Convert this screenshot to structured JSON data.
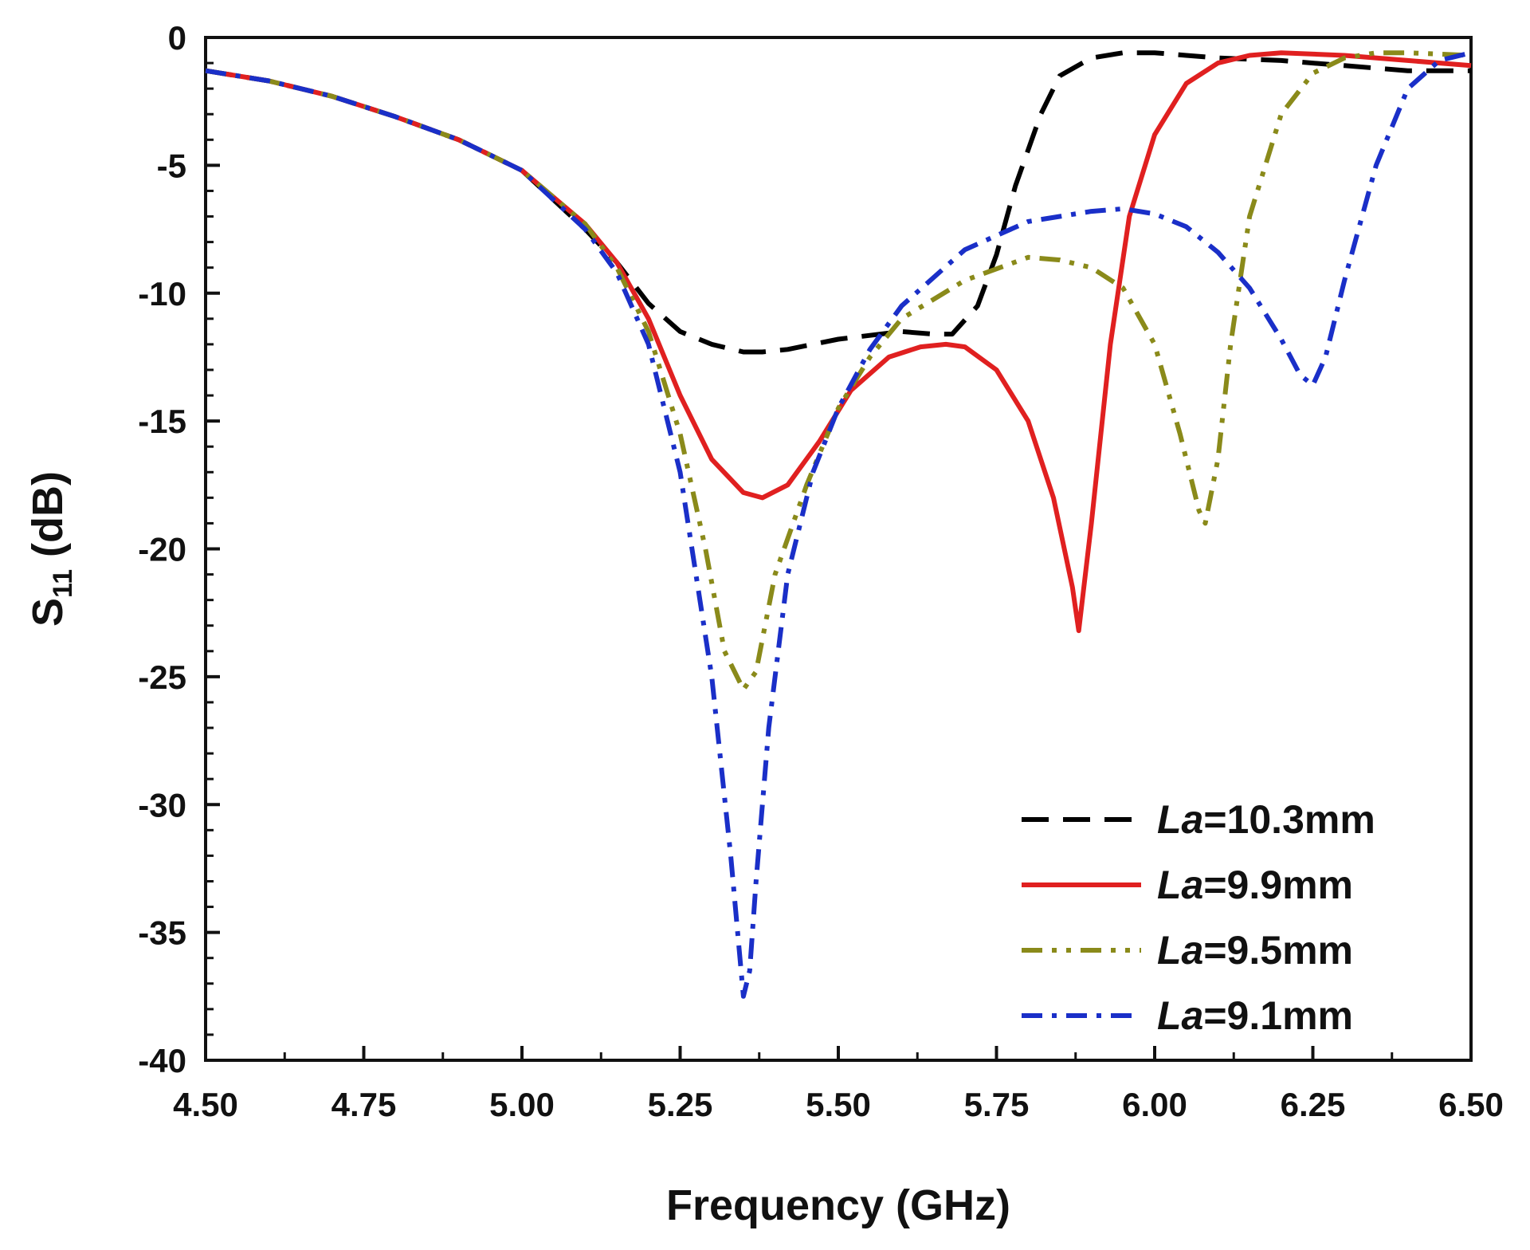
{
  "chart_data": {
    "type": "line",
    "title": "",
    "xlabel": "Frequency (GHz)",
    "ylabel_main": "S",
    "ylabel_sub": "11",
    "ylabel_unit": " (dB)",
    "xlim": [
      4.5,
      6.5
    ],
    "ylim": [
      -40,
      0
    ],
    "xticks": [
      4.5,
      4.75,
      5.0,
      5.25,
      5.5,
      5.75,
      6.0,
      6.25,
      6.5
    ],
    "xtick_labels": [
      "4.50",
      "4.75",
      "5.00",
      "5.25",
      "5.50",
      "5.75",
      "6.00",
      "6.25",
      "6.50"
    ],
    "yticks": [
      0,
      -5,
      -10,
      -15,
      -20,
      -25,
      -30,
      -35,
      -40
    ],
    "ytick_labels": [
      "0",
      "-5",
      "-10",
      "-15",
      "-20",
      "-25",
      "-30",
      "-35",
      "-40"
    ],
    "grid": false,
    "legend_position": "bottom-right",
    "series": [
      {
        "name_prefix": "La",
        "name_suffix": "=10.3mm",
        "color": "#000000",
        "dash": "dashed",
        "x": [
          4.5,
          4.6,
          4.7,
          4.8,
          4.9,
          5.0,
          5.1,
          5.15,
          5.2,
          5.25,
          5.3,
          5.35,
          5.38,
          5.42,
          5.5,
          5.6,
          5.65,
          5.68,
          5.72,
          5.75,
          5.78,
          5.82,
          5.85,
          5.9,
          5.95,
          6.0,
          6.05,
          6.1,
          6.2,
          6.3,
          6.4,
          6.5
        ],
        "y": [
          -1.3,
          -1.7,
          -2.3,
          -3.1,
          -4.0,
          -5.2,
          -7.5,
          -8.8,
          -10.4,
          -11.5,
          -12.0,
          -12.3,
          -12.3,
          -12.2,
          -11.8,
          -11.5,
          -11.6,
          -11.6,
          -10.5,
          -8.5,
          -5.8,
          -3.0,
          -1.5,
          -0.8,
          -0.6,
          -0.6,
          -0.7,
          -0.8,
          -0.9,
          -1.1,
          -1.3,
          -1.3
        ]
      },
      {
        "name_prefix": "La",
        "name_suffix": "=9.9mm",
        "color": "#e02020",
        "dash": "solid",
        "x": [
          4.5,
          4.6,
          4.7,
          4.8,
          4.9,
          5.0,
          5.1,
          5.15,
          5.2,
          5.25,
          5.3,
          5.35,
          5.38,
          5.42,
          5.47,
          5.52,
          5.58,
          5.63,
          5.67,
          5.7,
          5.75,
          5.8,
          5.84,
          5.87,
          5.88,
          5.9,
          5.93,
          5.96,
          6.0,
          6.05,
          6.1,
          6.15,
          6.2,
          6.3,
          6.4,
          6.5
        ],
        "y": [
          -1.3,
          -1.7,
          -2.3,
          -3.1,
          -4.0,
          -5.2,
          -7.3,
          -8.8,
          -11.0,
          -14.0,
          -16.5,
          -17.8,
          -18.0,
          -17.5,
          -15.8,
          -13.8,
          -12.5,
          -12.1,
          -12.0,
          -12.1,
          -13.0,
          -15.0,
          -18.0,
          -21.5,
          -23.2,
          -19.0,
          -12.0,
          -7.0,
          -3.8,
          -1.8,
          -1.0,
          -0.7,
          -0.6,
          -0.7,
          -0.9,
          -1.1
        ]
      },
      {
        "name_prefix": "La",
        "name_suffix": "=9.5mm",
        "color": "#8a8a1a",
        "dash": "dash-dot-dot",
        "x": [
          4.5,
          4.6,
          4.7,
          4.8,
          4.9,
          5.0,
          5.1,
          5.15,
          5.2,
          5.25,
          5.29,
          5.32,
          5.35,
          5.37,
          5.4,
          5.45,
          5.5,
          5.55,
          5.6,
          5.7,
          5.8,
          5.85,
          5.9,
          5.95,
          6.0,
          6.04,
          6.07,
          6.08,
          6.1,
          6.12,
          6.15,
          6.2,
          6.25,
          6.3,
          6.35,
          6.4,
          6.5
        ],
        "y": [
          -1.3,
          -1.7,
          -2.3,
          -3.1,
          -4.0,
          -5.2,
          -7.3,
          -9.0,
          -11.5,
          -15.5,
          -20.0,
          -24.0,
          -25.5,
          -24.8,
          -21.0,
          -17.5,
          -14.5,
          -12.5,
          -11.0,
          -9.5,
          -8.6,
          -8.7,
          -9.0,
          -9.8,
          -12.0,
          -15.5,
          -18.5,
          -19.0,
          -16.5,
          -12.0,
          -7.0,
          -3.0,
          -1.4,
          -0.8,
          -0.6,
          -0.6,
          -0.7
        ]
      },
      {
        "name_prefix": "La",
        "name_suffix": "=9.1mm",
        "color": "#1a2fc8",
        "dash": "dash-dot",
        "x": [
          4.5,
          4.6,
          4.7,
          4.8,
          4.9,
          5.0,
          5.1,
          5.15,
          5.2,
          5.25,
          5.3,
          5.33,
          5.35,
          5.36,
          5.37,
          5.39,
          5.42,
          5.46,
          5.5,
          5.55,
          5.6,
          5.7,
          5.8,
          5.9,
          5.95,
          6.0,
          6.05,
          6.1,
          6.15,
          6.2,
          6.23,
          6.25,
          6.27,
          6.3,
          6.35,
          6.4,
          6.45,
          6.5
        ],
        "y": [
          -1.3,
          -1.7,
          -2.3,
          -3.1,
          -4.0,
          -5.2,
          -7.5,
          -9.2,
          -12.0,
          -17.0,
          -25.0,
          -32.0,
          -37.5,
          -36.5,
          -33.0,
          -27.0,
          -21.0,
          -17.0,
          -14.5,
          -12.2,
          -10.5,
          -8.3,
          -7.2,
          -6.8,
          -6.7,
          -6.9,
          -7.4,
          -8.4,
          -9.8,
          -11.8,
          -13.2,
          -13.6,
          -12.5,
          -9.5,
          -5.0,
          -2.0,
          -0.9,
          -0.6
        ]
      }
    ]
  }
}
